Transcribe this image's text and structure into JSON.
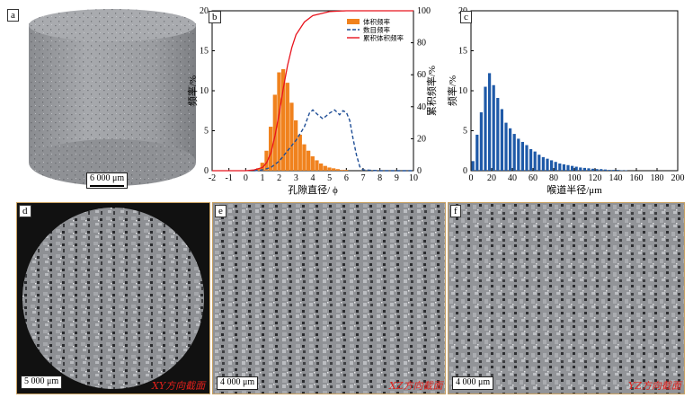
{
  "panels": {
    "a": {
      "label": "a",
      "scale": "6 000 μm"
    },
    "b": {
      "label": "b"
    },
    "c": {
      "label": "c"
    },
    "d": {
      "label": "d",
      "scale": "5 000 μm",
      "direction": "XY方向截面"
    },
    "e": {
      "label": "e",
      "scale": "4 000 μm",
      "direction": "XZ方向截面"
    },
    "f": {
      "label": "f",
      "scale": "4 000 μm",
      "direction": "YZ方向截面"
    }
  },
  "chart_data": [
    {
      "panel": "b",
      "type": "bar",
      "title": "",
      "xlabel": "孔隙直径/ ϕ",
      "ylabel": "频率/%",
      "ylabel_right": "累积频率/%",
      "xlim": [
        -2,
        10
      ],
      "ylim": [
        0,
        20
      ],
      "ylim_right": [
        0,
        100
      ],
      "xticks": [
        -2,
        -1,
        0,
        1,
        2,
        3,
        4,
        5,
        6,
        7,
        8,
        9,
        10
      ],
      "yticks": [
        0,
        5,
        10,
        15,
        20
      ],
      "yticks_right": [
        0,
        20,
        40,
        60,
        80,
        100
      ],
      "legend": {
        "position": "top-right",
        "entries": [
          "体积频率",
          "数目频率",
          "累积体积频率"
        ]
      },
      "colors": {
        "bars": "#f0821e",
        "number": "#1f4e96",
        "cumulative": "#e8141e"
      },
      "series": [
        {
          "name": "体积频率",
          "kind": "bars",
          "bin_width": 0.25,
          "x": [
            0.75,
            1.0,
            1.25,
            1.5,
            1.75,
            2.0,
            2.25,
            2.5,
            2.75,
            3.0,
            3.25,
            3.5,
            3.75,
            4.0,
            4.25,
            4.5,
            4.75,
            5.0,
            5.25,
            5.5,
            5.75,
            6.0
          ],
          "values": [
            0.3,
            1.0,
            2.5,
            5.5,
            9.5,
            12.3,
            12.7,
            11.0,
            8.5,
            6.3,
            4.5,
            3.3,
            2.5,
            1.8,
            1.3,
            0.9,
            0.6,
            0.4,
            0.3,
            0.2,
            0.1,
            0.1
          ]
        },
        {
          "name": "数目频率",
          "kind": "dashed",
          "axis": "left",
          "x": [
            0.5,
            1.0,
            1.5,
            2.0,
            2.5,
            3.0,
            3.5,
            3.8,
            4.0,
            4.3,
            4.6,
            5.0,
            5.3,
            5.6,
            5.8,
            6.0,
            6.2,
            6.4,
            6.6,
            6.8,
            7.0,
            8.0,
            10.0
          ],
          "values": [
            0.0,
            0.1,
            0.4,
            1.2,
            2.5,
            3.8,
            5.5,
            7.2,
            7.6,
            7.0,
            6.5,
            7.2,
            7.6,
            7.0,
            7.5,
            7.3,
            6.3,
            4.0,
            2.0,
            0.5,
            0.1,
            0.0,
            0.0
          ]
        },
        {
          "name": "累积体积频率",
          "kind": "line",
          "axis": "right",
          "x": [
            -2,
            0.0,
            0.5,
            1.0,
            1.25,
            1.5,
            1.75,
            2.0,
            2.25,
            2.5,
            2.75,
            3.0,
            3.5,
            4.0,
            5.0,
            6.0,
            10.0
          ],
          "values": [
            0,
            0,
            0.5,
            2,
            5,
            11,
            22,
            36,
            52,
            66,
            77,
            85,
            93,
            97,
            99.5,
            100,
            100
          ]
        }
      ]
    },
    {
      "panel": "c",
      "type": "bar",
      "title": "",
      "xlabel": "喉道半径/μm",
      "ylabel": "频率/%",
      "xlim": [
        0,
        200
      ],
      "ylim": [
        0,
        20
      ],
      "xticks": [
        0,
        20,
        40,
        60,
        80,
        100,
        120,
        140,
        160,
        180,
        200
      ],
      "yticks": [
        0,
        5,
        10,
        15,
        20
      ],
      "colors": {
        "bars": "#1f5aa8"
      },
      "series": [
        {
          "name": "",
          "bin_width": 4,
          "x": [
            2,
            6,
            10,
            14,
            18,
            22,
            26,
            30,
            34,
            38,
            42,
            46,
            50,
            54,
            58,
            62,
            66,
            70,
            74,
            78,
            82,
            86,
            90,
            94,
            98,
            102,
            106,
            110,
            114,
            118,
            122,
            126,
            130,
            134,
            138,
            142,
            146,
            150
          ],
          "values": [
            1.2,
            4.5,
            7.3,
            10.5,
            12.2,
            10.7,
            9.1,
            7.7,
            6.0,
            5.3,
            4.6,
            4.0,
            3.6,
            3.2,
            2.7,
            2.4,
            2.0,
            1.7,
            1.5,
            1.3,
            1.1,
            0.9,
            0.8,
            0.7,
            0.6,
            0.5,
            0.4,
            0.35,
            0.3,
            0.25,
            0.2,
            0.2,
            0.15,
            0.1,
            0.1,
            0.1,
            0.05,
            0.05
          ]
        }
      ]
    }
  ]
}
